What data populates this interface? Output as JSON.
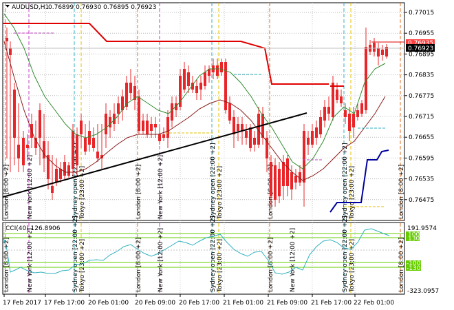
{
  "header": {
    "symbol_tf": "AUDUSD,H1",
    "ohlc": "0.76899 0.76930 0.76895 0.76923"
  },
  "price_axis": {
    "labels": [
      "0.77015",
      "0.76955",
      "0.76895",
      "0.76835",
      "0.76775",
      "0.76715",
      "0.76655",
      "0.76595",
      "0.76535",
      "0.76475"
    ],
    "current_price": "0.76923",
    "prev_price": "0.76935"
  },
  "cci": {
    "title": "CCI(40) 126.8906",
    "top_label": "191.9574",
    "bottom_label": "-323.0957",
    "level_labels": [
      "100",
      "130",
      "-100",
      "-130"
    ]
  },
  "time_axis": {
    "labels": [
      "17 Feb 2017",
      "17 Feb 17:00",
      "20 Feb 01:00",
      "20 Feb 09:00",
      "20 Feb 17:00",
      "21 Feb 01:00",
      "21 Feb 09:00",
      "21 Feb 17:00",
      "22 Feb 01:00"
    ]
  },
  "session_labels": {
    "main": [
      "London [8:00 +2]",
      "New York [12:00 +2]",
      "Sydney open [22:00 +2]",
      "Tokyo [23:00 +2]",
      "London [8:00 +2]",
      "New York [12:00 +2]",
      "Sydney open [22:00 +2]",
      "Tokyo [23:00 +2]",
      "London [8:00 +2]",
      "Sydney open [22:00 +2]",
      "Tokyo [23:00 +2]",
      "London [8:00 +2]"
    ],
    "cci": [
      "London [8:00 +2]",
      "New York [12:00 +2]",
      "Sydney open [22:00 +2]",
      "Tokyo [23:00 +2]",
      "London [8:00 +2]",
      "New York [12:00 +2]",
      "Sydney open [22:00 +2]",
      "Tokyo [23:00 +2]",
      "London [8:00 +2]",
      "New York [12:00 +2]",
      "Sydney open [22:00 +2]",
      "Tokyo [23:00 +2]",
      "London [8:00 +2]"
    ]
  },
  "colors": {
    "bull": "#1b1bd6",
    "bear": "#e8262a",
    "ma_fast": "#2e8b2e",
    "ma_slow": "#8b1a1a",
    "resistance": "#e00000",
    "support": "#0000a0",
    "trendline": "#000000",
    "cci_line": "#30b0c0",
    "level": "#66cc00"
  }
}
